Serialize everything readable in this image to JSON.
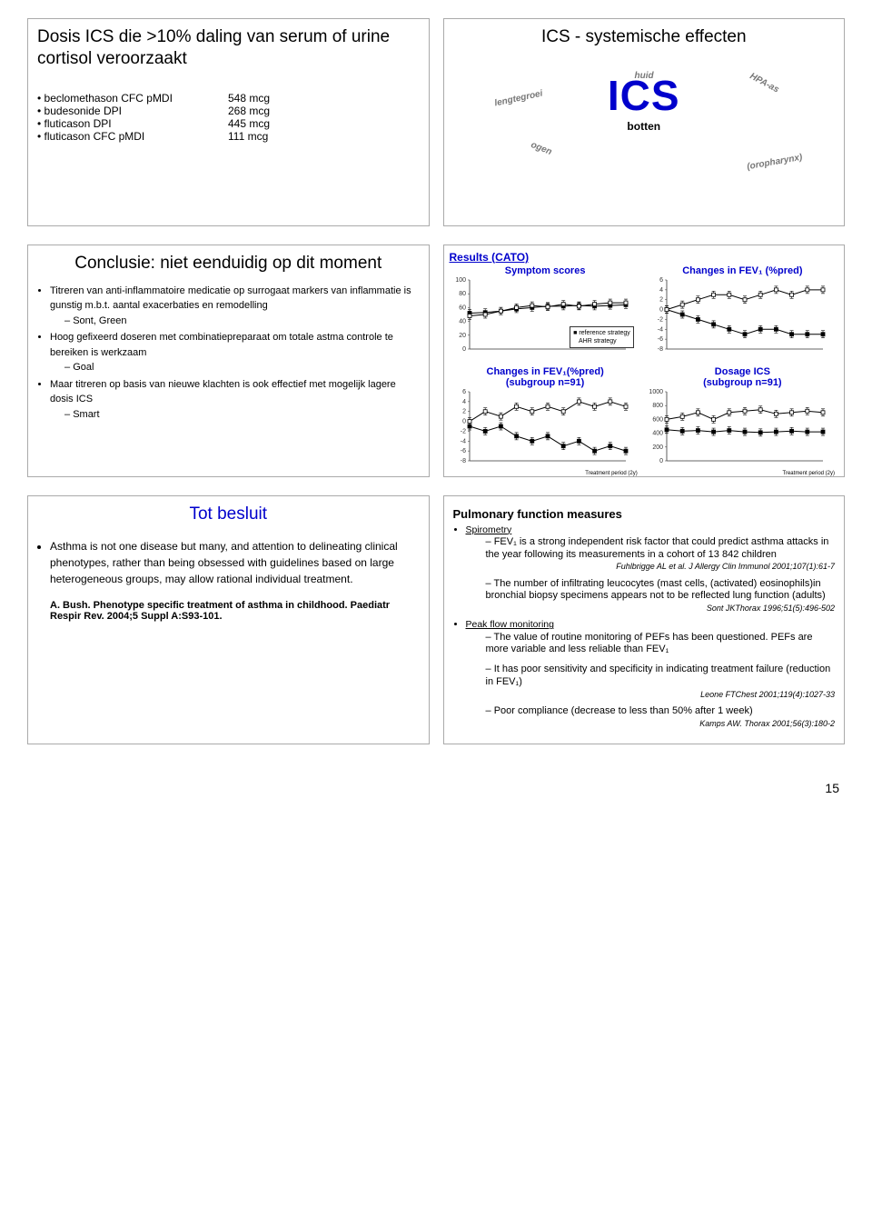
{
  "slide1": {
    "title": "Dosis ICS die >10% daling van serum of urine cortisol veroorzaakt",
    "rows": [
      {
        "k": "beclomethason CFC pMDI",
        "v": "548 mcg"
      },
      {
        "k": "budesonide DPI",
        "v": "268 mcg"
      },
      {
        "k": "fluticason DPI",
        "v": "445 mcg"
      },
      {
        "k": "fluticason CFC pMDI",
        "v": "111 mcg"
      }
    ]
  },
  "slide2": {
    "title": "ICS - systemische effecten",
    "big": "ICS",
    "botten": "botten",
    "labels": {
      "lengtegroei": "lengtegroei",
      "huid": "huid",
      "hpa": "HPA-as",
      "ogen": "ogen",
      "oro": "(oropharynx)"
    }
  },
  "slide3": {
    "title": "Conclusie: niet eenduidig op dit moment",
    "bullets": [
      {
        "t": "Titreren van anti-inflammatoire medicatie op surrogaat markers van inflammatie is gunstig m.b.t. aantal exacerbaties en remodelling",
        "sub": [
          "Sont, Green"
        ]
      },
      {
        "t": "Hoog gefixeerd doseren met combinatiepreparaat om totale astma controle te bereiken is werkzaam",
        "sub": [
          "Goal"
        ]
      },
      {
        "t": "Maar titreren op basis van nieuwe klachten is ook effectief met mogelijk lagere dosis ICS",
        "sub": [
          "Smart"
        ]
      }
    ]
  },
  "slide4": {
    "header": "Results (CATO)",
    "c1_title": "Symptom scores",
    "c2_title": "Changes in FEV₁ (%pred)",
    "c3_title": "Changes in FEV₁(%pred)\n(subgroup n=91)",
    "c4_title": "Dosage ICS\n(subgroup n=91)",
    "legend1": "reference strategy",
    "legend2": "AHR strategy",
    "xlabel": "Treatment period (2y)",
    "chart1": {
      "ylabels": [
        "0",
        "20",
        "40",
        "60",
        "80",
        "100"
      ],
      "ymin": 0,
      "ymax": 100,
      "series_ref": [
        52,
        53,
        55,
        58,
        60,
        62,
        62,
        63,
        62,
        63,
        64
      ],
      "series_ahr": [
        48,
        50,
        55,
        60,
        63,
        61,
        65,
        62,
        65,
        67,
        67
      ],
      "ref_color": "#000",
      "ahr_color": "#000"
    },
    "chart2": {
      "ylabels": [
        "-8",
        "-6",
        "-4",
        "-2",
        "0",
        "2",
        "4",
        "6"
      ],
      "ymin": -8,
      "ymax": 6,
      "series_ref": [
        0,
        -1,
        -2,
        -3,
        -4,
        -5,
        -4,
        -4,
        -5,
        -5,
        -5
      ],
      "series_ahr": [
        0,
        1,
        2,
        3,
        3,
        2,
        3,
        4,
        3,
        4,
        4
      ],
      "ref_color": "#000",
      "ahr_color": "#000"
    },
    "chart3": {
      "ylabels": [
        "-8",
        "-6",
        "-4",
        "-2",
        "0",
        "2",
        "4",
        "6"
      ],
      "ymin": -8,
      "ymax": 6,
      "series_ref": [
        -1,
        -2,
        -1,
        -3,
        -4,
        -3,
        -5,
        -4,
        -6,
        -5,
        -6
      ],
      "series_ahr": [
        0,
        2,
        1,
        3,
        2,
        3,
        2,
        4,
        3,
        4,
        3
      ],
      "ref_color": "#000",
      "ahr_color": "#000"
    },
    "chart4": {
      "ylabels": [
        "0",
        "200",
        "400",
        "600",
        "800",
        "1000"
      ],
      "ymin": 0,
      "ymax": 1000,
      "series_ref": [
        450,
        430,
        440,
        420,
        440,
        420,
        410,
        420,
        430,
        420,
        420
      ],
      "series_ahr": [
        600,
        640,
        700,
        600,
        700,
        720,
        740,
        680,
        700,
        720,
        700
      ],
      "ref_color": "#000",
      "ahr_color": "#000"
    }
  },
  "slide5": {
    "title": "Tot besluit",
    "body": "Asthma is not one disease but many, and attention to delineating clinical phenotypes, rather than being obsessed with guidelines based on large heterogeneous groups, may allow rational individual treatment.",
    "ref": "A. Bush. Phenotype specific treatment of asthma in childhood. Paediatr Respir Rev. 2004;5 Suppl A:S93-101."
  },
  "slide6": {
    "title": "Pulmonary function measures",
    "spiro": "Spirometry",
    "spiro_items": [
      {
        "t": "FEV₁ is a strong independent risk factor that could predict asthma attacks in the year following its measurements in a cohort of 13 842 children",
        "r": "Fuhlbrigge AL et al. J Allergy Clin Immunol 2001;107(1):61-7"
      },
      {
        "t": "The number of infiltrating leucocytes (mast cells, (activated) eosinophils)in bronchial biopsy specimens appears not to be reflected lung function (adults)",
        "r": "Sont JKThorax 1996;51(5):496-502"
      }
    ],
    "peak": "Peak flow monitoring",
    "peak_items": [
      {
        "t": "The value of routine monitoring of PEFs has been questioned. PEFs are more variable and less reliable than FEV₁",
        "r": ""
      },
      {
        "t": "It has poor sensitivity and specificity in indicating treatment failure (reduction in FEV₁)",
        "r": "Leone FTChest 2001;119(4):1027-33"
      },
      {
        "t": "Poor compliance (decrease to less than 50% after 1 week)",
        "r": "Kamps AW. Thorax 2001;56(3):180-2"
      }
    ]
  },
  "pagefoot": "15"
}
